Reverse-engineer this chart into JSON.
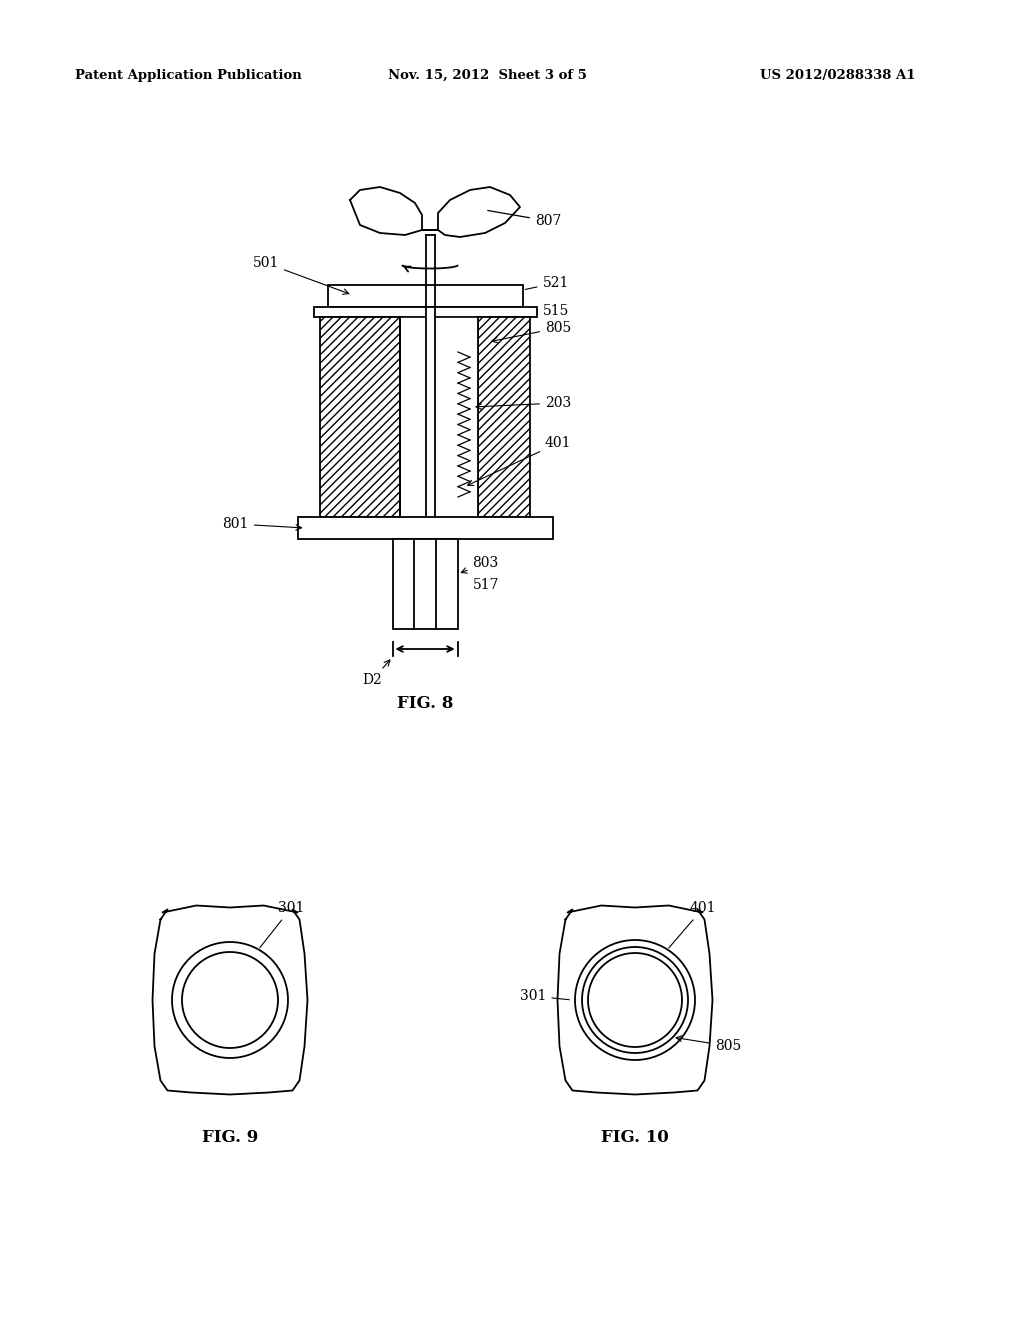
{
  "background_color": "#ffffff",
  "header_left": "Patent Application Publication",
  "header_center": "Nov. 15, 2012  Sheet 3 of 5",
  "header_right": "US 2012/0288338 A1",
  "fig8_caption": "FIG. 8",
  "fig9_caption": "FIG. 9",
  "fig10_caption": "FIG. 10",
  "line_color": "#000000"
}
